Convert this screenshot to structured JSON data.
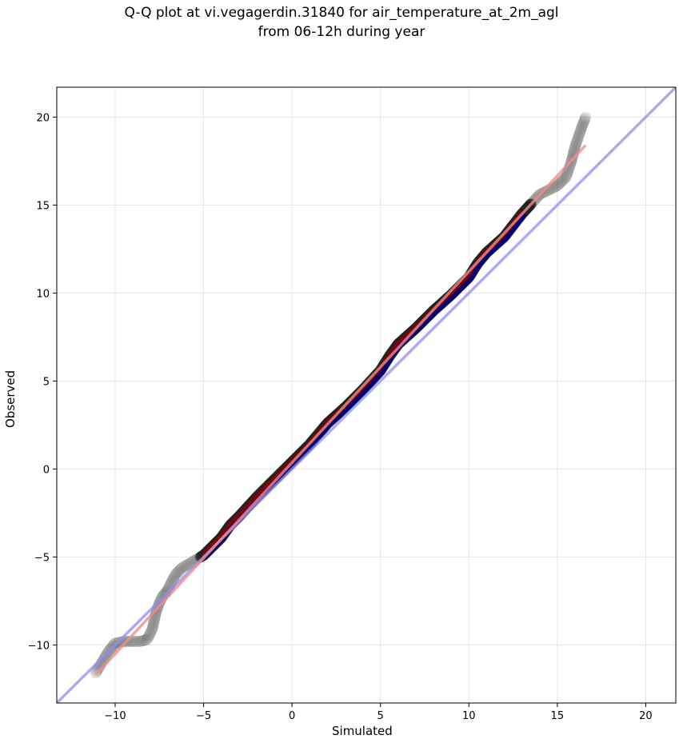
{
  "chart_data": {
    "type": "scatter",
    "title": "Q-Q plot at vi.vegagerdin.31840 for air_temperature_at_2m_agl",
    "subtitle": "from 06-12h during year",
    "xlabel": "Simulated",
    "ylabel": "Observed",
    "xlim": [
      -13.3,
      21.7
    ],
    "ylim": [
      -13.3,
      21.7
    ],
    "xticks": [
      -10,
      -5,
      0,
      5,
      10,
      15,
      20
    ],
    "yticks": [
      -10,
      -5,
      0,
      5,
      10,
      15,
      20
    ],
    "xtick_labels": [
      "−10",
      "−5",
      "0",
      "5",
      "10",
      "15",
      "20"
    ],
    "ytick_labels": [
      "−10",
      "−5",
      "0",
      "5",
      "10",
      "15",
      "20"
    ],
    "grid": true,
    "quantile_curve": {
      "x": [
        -11.1,
        -10.4,
        -10.0,
        -9.5,
        -9.0,
        -8.6,
        -8.2,
        -7.9,
        -7.7,
        -7.5,
        -7.3,
        -7.1,
        -6.9,
        -6.6,
        -6.2,
        -5.5,
        -5.0,
        -4.5,
        -4.0,
        -3.5,
        -3.0,
        -2.0,
        -1.0,
        0.0,
        1.0,
        2.0,
        3.0,
        4.0,
        5.0,
        5.5,
        6.0,
        7.0,
        8.0,
        9.0,
        10.0,
        10.5,
        11.0,
        12.0,
        13.0,
        14.0,
        15.0,
        15.5,
        15.8,
        16.0,
        16.3,
        16.6
      ],
      "y": [
        -11.6,
        -10.4,
        -9.9,
        -9.8,
        -9.8,
        -9.8,
        -9.7,
        -9.1,
        -8.2,
        -7.6,
        -7.2,
        -7.0,
        -6.6,
        -6.0,
        -5.6,
        -5.2,
        -4.9,
        -4.4,
        -3.9,
        -3.2,
        -2.7,
        -1.6,
        -0.6,
        0.4,
        1.4,
        2.6,
        3.5,
        4.5,
        5.6,
        6.4,
        7.1,
        8.0,
        9.0,
        9.9,
        10.9,
        11.7,
        12.3,
        13.2,
        14.5,
        15.6,
        16.1,
        16.6,
        17.5,
        18.3,
        19.2,
        20.0
      ]
    },
    "one_to_one_line": {
      "x": [
        -13.3,
        21.7
      ],
      "y": [
        -13.3,
        21.7
      ],
      "color": "#8f8ff0"
    },
    "fit_line": {
      "x": [
        -11.1,
        16.6
      ],
      "y": [
        -11.7,
        18.4
      ],
      "color": "#f28b8b"
    },
    "colors": {
      "points": "#222222",
      "density_dark_red": "#8b0000",
      "density_navy": "#000080"
    }
  }
}
